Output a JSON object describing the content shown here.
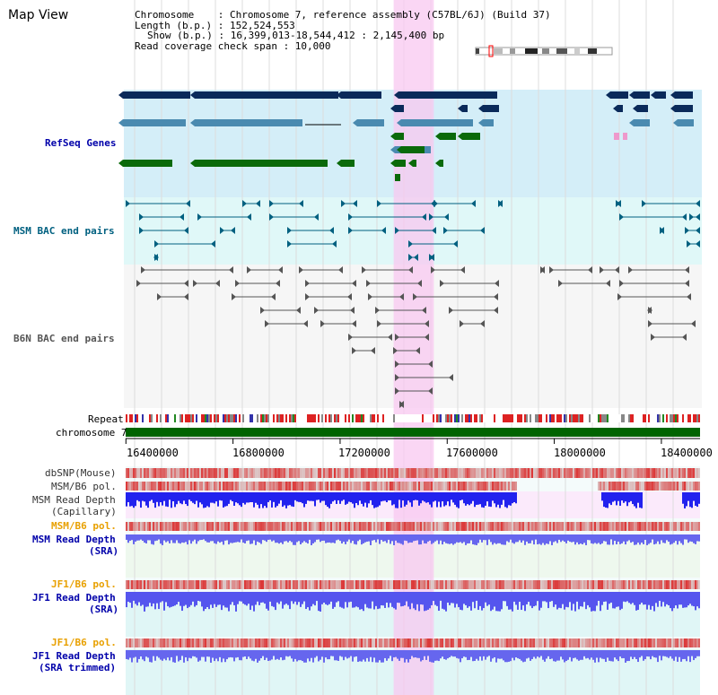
{
  "title": "Map View",
  "info": {
    "line1": "Chromosome    : Chromosome 7, reference assembly (C57BL/6J) (Build 37)",
    "line2": "Length (b.p.) : 152,524,553",
    "line3": "Show (b.p.) : 16,399,013-18,544,412 : 2,145,400 bp",
    "line4": "Read coverage check span : 10,000"
  },
  "tracks": {
    "refseq": "RefSeq Genes",
    "msm_bac": "MSM BAC end pairs",
    "b6n_bac": "B6N BAC end pairs",
    "repeat": "Repeat",
    "chromosome": "chromosome 7",
    "dbsnp": "dbSNP(Mouse)",
    "msm_b6_pol1": "MSM/B6 pol.",
    "msm_read_cap_1": "MSM Read Depth",
    "msm_read_cap_2": "(Capillary)",
    "msm_b6_pol2": "MSM/B6 pol.",
    "msm_read_sra_1": "MSM Read Depth",
    "msm_read_sra_2": "(SRA)",
    "jf1_b6_pol1": "JF1/B6 pol.",
    "jf1_read_sra_1": "JF1 Read Depth",
    "jf1_read_sra_2": "(SRA)",
    "jf1_b6_pol2": "JF1/B6 pol.",
    "jf1_read_trim_1": "JF1 Read Depth",
    "jf1_read_trim_2": "(SRA trimmed)"
  },
  "axis_ticks": [
    "16400000",
    "16800000",
    "17200000",
    "17600000",
    "18000000",
    "18400000"
  ],
  "axis_tick_values": [
    16400000,
    16800000,
    17200000,
    17600000,
    18000000,
    18400000
  ],
  "view_range": [
    16399013,
    18544412
  ],
  "highlight_range": [
    17400000,
    17550000
  ],
  "colors": {
    "label_blue": "#0000aa",
    "label_orange": "#e8a000",
    "label_teal": "#006080",
    "refseq_bg": "#d4eef8",
    "bac_bg": "#e0f8f8",
    "highlight": "#f8c8f0",
    "gene_dark": "#0a2a5a",
    "gene_mid": "#4a8ab0",
    "gene_green": "#0a6a0a",
    "chromosome_bar": "#006400"
  }
}
